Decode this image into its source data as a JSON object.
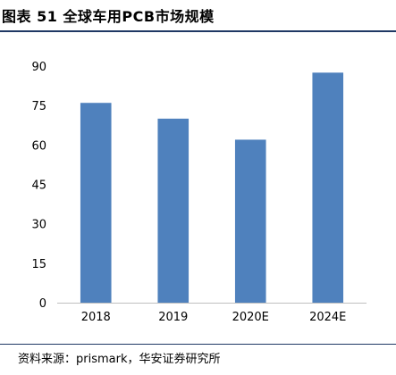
{
  "header": {
    "title": "图表 51 全球车用PCB市场规模"
  },
  "footer": {
    "source": "资料来源：prismark，华安证券研究所"
  },
  "chart_data": {
    "type": "bar",
    "title": "",
    "xlabel": "",
    "ylabel": "",
    "categories": [
      "2018",
      "2019",
      "2020E",
      "2024E"
    ],
    "values": [
      76,
      70,
      62,
      87.5
    ],
    "ylim": [
      0,
      90
    ],
    "yticks": [
      0,
      15,
      30,
      45,
      60,
      75,
      90
    ],
    "grid": false,
    "legend": "none",
    "bar_color": "#4f81bd"
  }
}
